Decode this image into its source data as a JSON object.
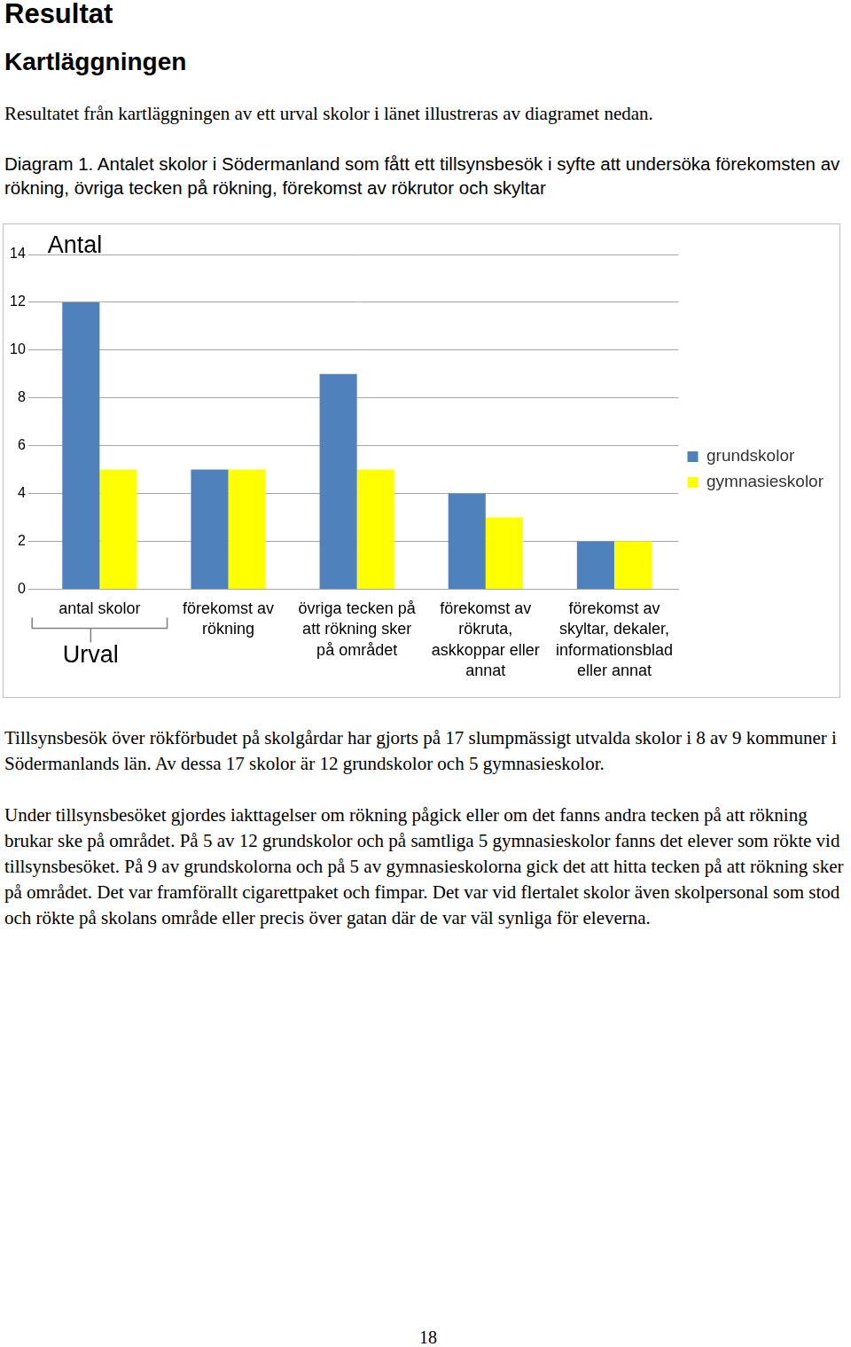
{
  "document": {
    "heading": "Resultat",
    "subheading": "Kartläggningen",
    "intro": "Resultatet från kartläggningen av ett urval skolor i länet illustreras av diagramet nedan.",
    "caption": "Diagram 1. Antalet skolor i Södermanland som fått ett tillsynsbesök i syfte att undersöka förekomsten av rökning, övriga tecken på rökning, förekomst av rökrutor och skyltar",
    "paragraphs": [
      "Tillsynsbesök över rökförbudet på skolgårdar har gjorts på 17 slumpmässigt utvalda skolor i 8 av 9 kommuner i Södermanlands län. Av dessa 17 skolor är 12 grundskolor och 5 gymnasieskolor.",
      "Under tillsynsbesöket gjordes iakttagelser om rökning pågick eller om det fanns andra tecken på att rökning brukar ske på området. På 5 av 12 grundskolor och på samtliga 5 gymnasieskolor fanns det elever som rökte vid tillsynsbesöket. På 9 av grundskolorna och på 5 av gymnasieskolorna gick det att hitta tecken på att rökning sker på området. Det var framförallt cigarettpaket och fimpar. Det var vid flertalet skolor även skolpersonal som stod och rökte på skolans område eller precis över gatan där de var väl synliga för eleverna."
    ],
    "page_number": "18"
  },
  "chart_data": {
    "type": "bar",
    "ylabel": "Antal",
    "categories": [
      [
        "antal skolor"
      ],
      [
        "förekomst av",
        "rökning"
      ],
      [
        "övriga tecken på",
        "att rökning sker",
        "på området"
      ],
      [
        "förekomst av",
        "rökruta,",
        "askkoppar eller",
        "annat"
      ],
      [
        "förekomst av",
        "skyltar, dekaler,",
        "informationsblad",
        "eller annat"
      ]
    ],
    "series": [
      {
        "name": "grundskolor",
        "color": "#4f81bd",
        "values": [
          12,
          5,
          9,
          4,
          2
        ]
      },
      {
        "name": "gymnasieskolor",
        "color": "#ffff00",
        "values": [
          5,
          5,
          5,
          3,
          2
        ]
      }
    ],
    "ylim": [
      0,
      14
    ],
    "yticks": [
      0,
      2,
      4,
      6,
      8,
      10,
      12,
      14
    ],
    "grid": true,
    "legend": "right",
    "annotations": [
      {
        "text": "Urval",
        "category": "antal skolor"
      }
    ]
  }
}
